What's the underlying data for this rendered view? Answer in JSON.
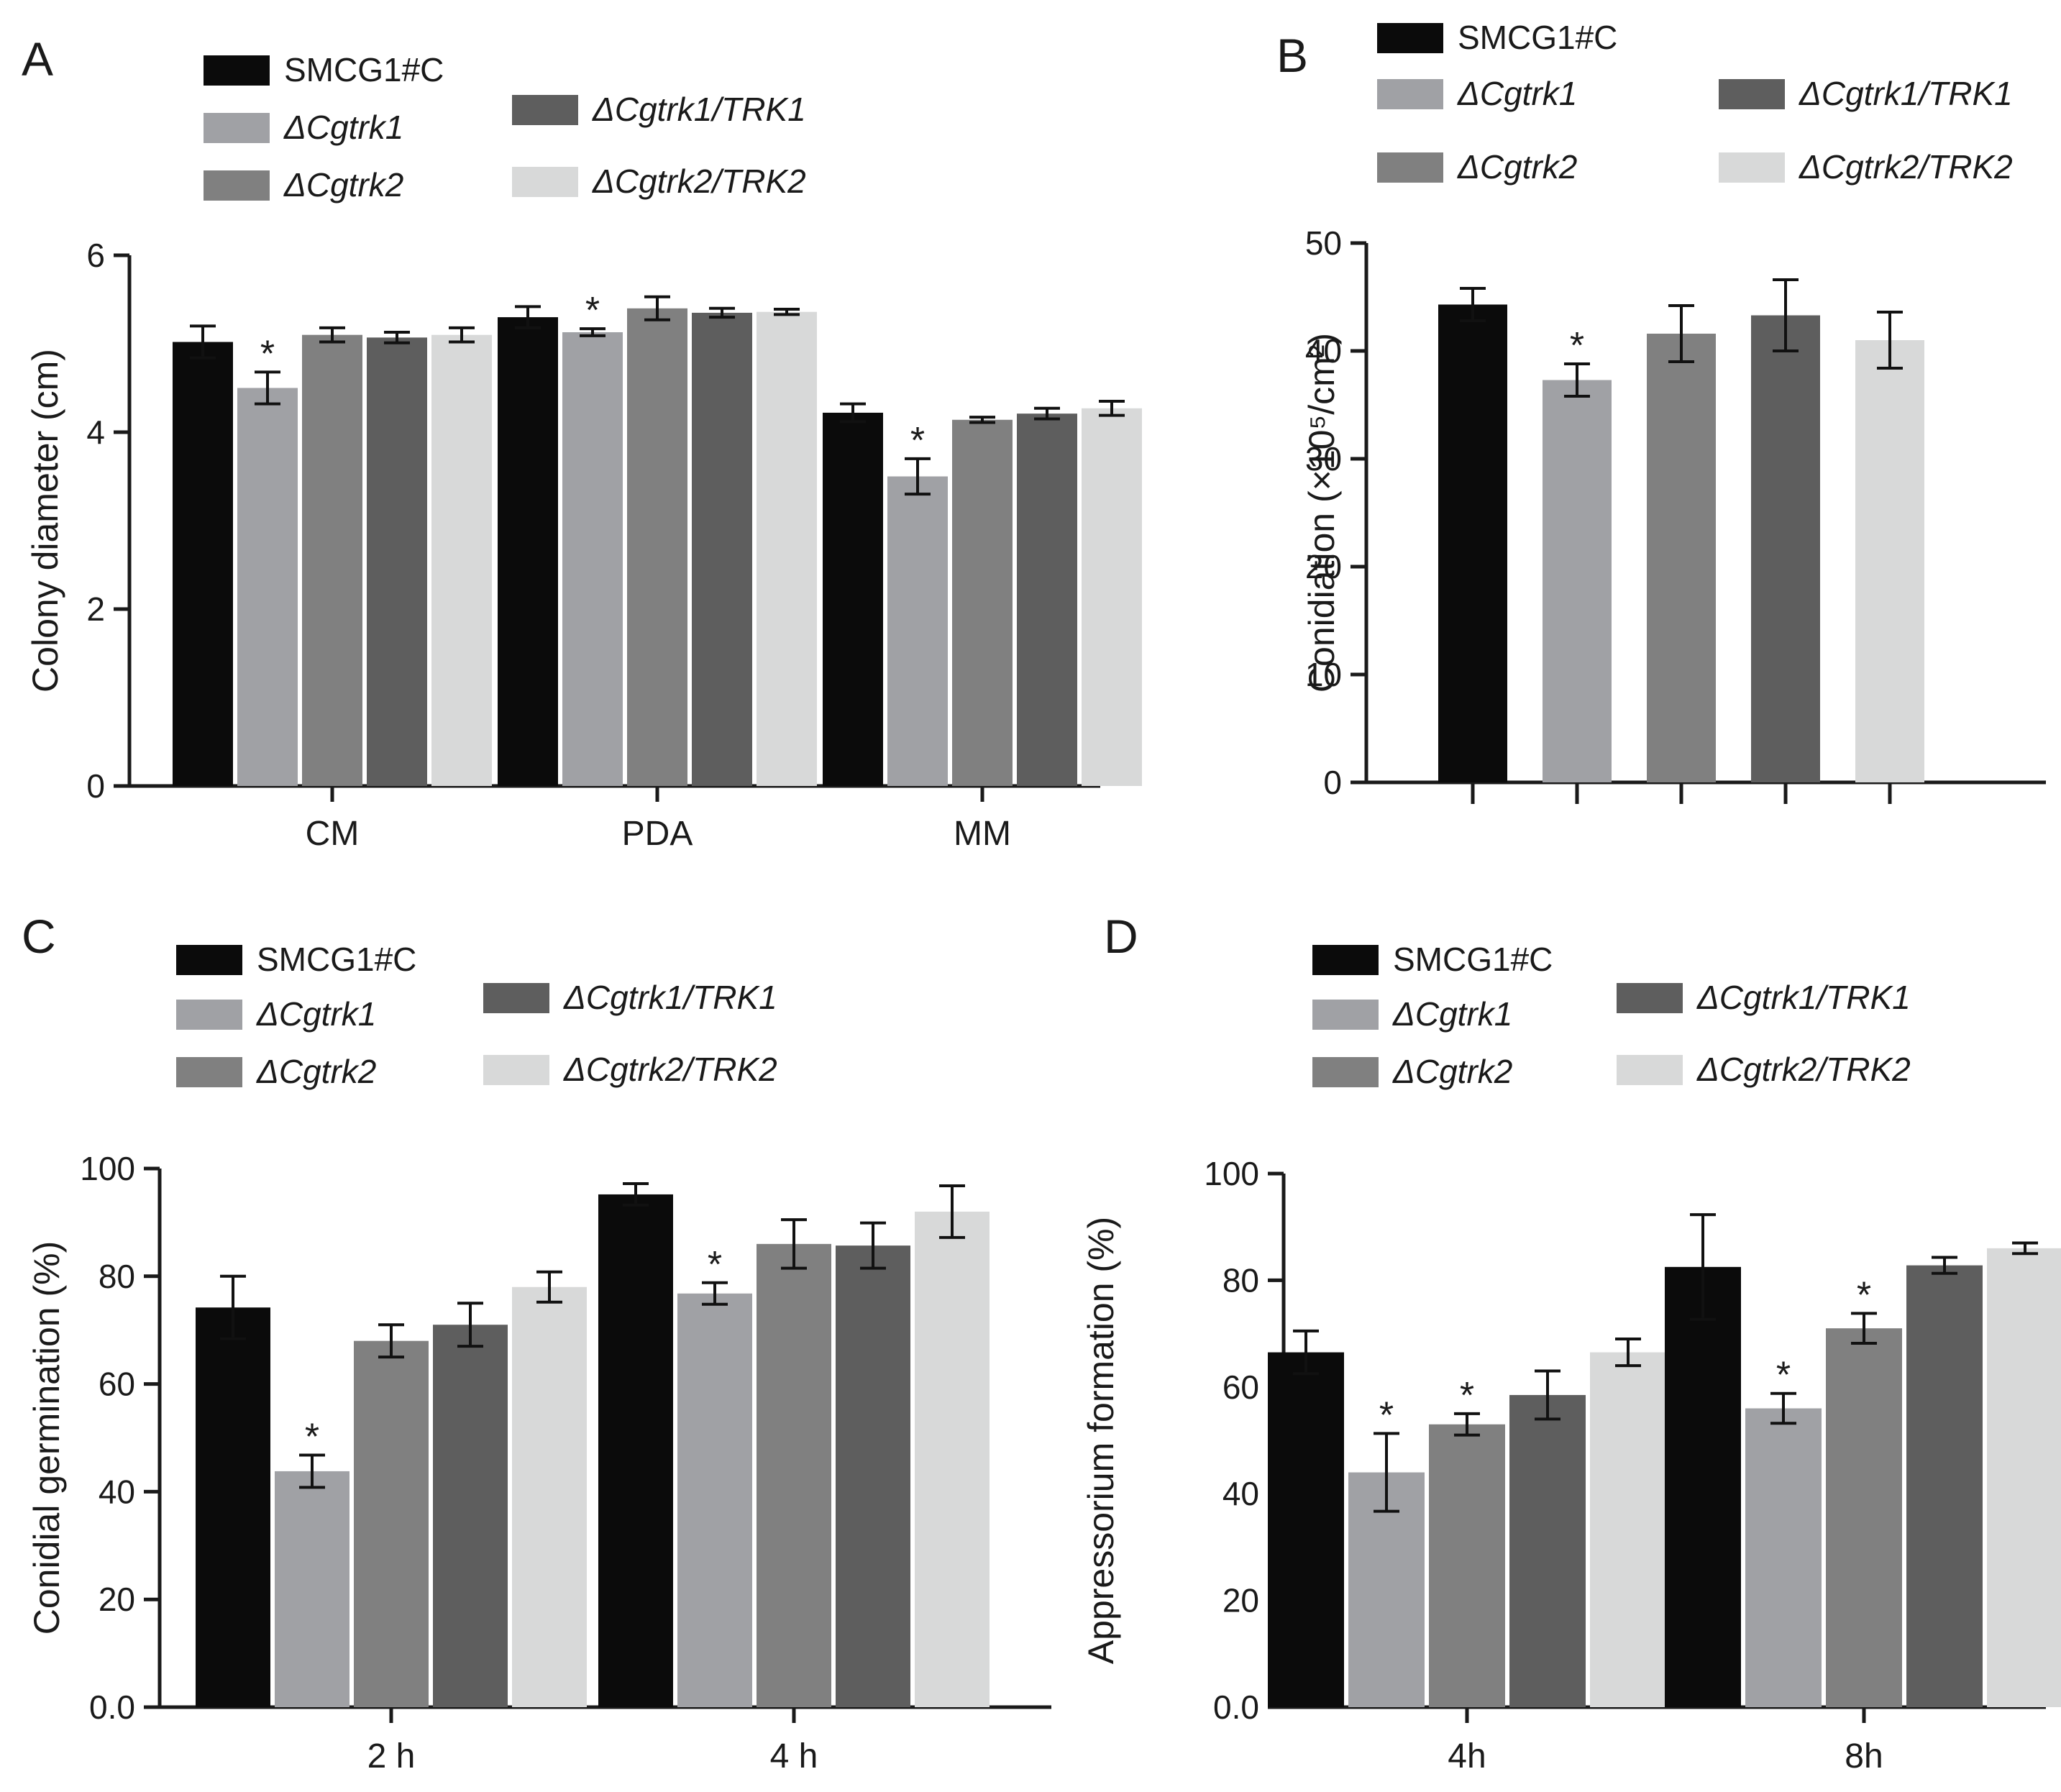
{
  "colors": {
    "SMCG1#C": "#0b0b0b",
    "ΔCgtrk1": "#a0a1a5",
    "ΔCgtrk2": "#808080",
    "ΔCgtrk1/TRK1": "#5e5e5e",
    "ΔCgtrk2/TRK2": "#d8d9d9"
  },
  "chart_data": [
    {
      "type": "bar",
      "panel_label": "A",
      "title": "",
      "xlabel": "",
      "ylabel": "Colony diameter (cm)",
      "ylim": [
        0,
        6
      ],
      "yticks": [
        "0",
        "2",
        "4",
        "6"
      ],
      "categories": [
        "CM",
        "PDA",
        "MM"
      ],
      "legend": [
        "SMCG1#C",
        "ΔCgtrk1",
        "ΔCgtrk1/TRK1",
        "ΔCgtrk2",
        "ΔCgtrk2/TRK2"
      ],
      "series": [
        {
          "name": "SMCG1#C",
          "values": [
            5.02,
            5.3,
            4.22
          ],
          "errors": [
            0.18,
            0.12,
            0.1
          ]
        },
        {
          "name": "ΔCgtrk1",
          "values": [
            4.5,
            5.13,
            3.5
          ],
          "errors": [
            0.18,
            0.04,
            0.2
          ],
          "significant": [
            true,
            true,
            true
          ]
        },
        {
          "name": "ΔCgtrk2",
          "values": [
            5.1,
            5.4,
            4.14
          ],
          "errors": [
            0.08,
            0.13,
            0.03
          ]
        },
        {
          "name": "ΔCgtrk1/TRK1",
          "values": [
            5.07,
            5.35,
            4.21
          ],
          "errors": [
            0.06,
            0.05,
            0.06
          ]
        },
        {
          "name": "ΔCgtrk2/TRK2",
          "values": [
            5.1,
            5.36,
            4.27
          ],
          "errors": [
            0.08,
            0.03,
            0.08
          ]
        }
      ]
    },
    {
      "type": "bar",
      "panel_label": "B",
      "title": "",
      "xlabel": "",
      "ylabel": "Conidiation (×10⁵/cm²)",
      "ylim": [
        0,
        50
      ],
      "yticks": [
        "0",
        "10",
        "20",
        "30",
        "40",
        "50"
      ],
      "categories": [
        "SMCG1#C",
        "ΔCgtrk1",
        "ΔCgtrk2",
        "ΔCgtrk1/TRK1",
        "ΔCgtrk2/TRK2"
      ],
      "values": [
        44.3,
        37.3,
        41.6,
        43.3,
        41.0
      ],
      "errors": [
        1.5,
        1.5,
        2.6,
        3.3,
        2.6
      ],
      "significant": [
        false,
        true,
        false,
        false,
        false
      ],
      "legend": [
        "SMCG1#C",
        "ΔCgtrk1",
        "ΔCgtrk1/TRK1",
        "ΔCgtrk2",
        "ΔCgtrk2/TRK2"
      ]
    },
    {
      "type": "bar",
      "panel_label": "C",
      "title": "",
      "xlabel": "",
      "ylabel": "Conidial germination (%)",
      "ylim": [
        0,
        100
      ],
      "yticks": [
        "0.0",
        "20",
        "40",
        "60",
        "80",
        "100"
      ],
      "categories": [
        "2 h",
        "4 h"
      ],
      "legend": [
        "SMCG1#C",
        "ΔCgtrk1",
        "ΔCgtrk1/TRK1",
        "ΔCgtrk2",
        "ΔCgtrk2/TRK2"
      ],
      "series": [
        {
          "name": "SMCG1#C",
          "values": [
            74.2,
            95.2
          ],
          "errors": [
            5.8,
            2.0
          ]
        },
        {
          "name": "ΔCgtrk1",
          "values": [
            43.8,
            76.8
          ],
          "errors": [
            3.0,
            2.0
          ],
          "significant": [
            true,
            true
          ]
        },
        {
          "name": "ΔCgtrk2",
          "values": [
            68.0,
            86.0
          ],
          "errors": [
            3.0,
            4.5
          ]
        },
        {
          "name": "ΔCgtrk1/TRK1",
          "values": [
            71.0,
            85.7
          ],
          "errors": [
            4.0,
            4.2
          ]
        },
        {
          "name": "ΔCgtrk2/TRK2",
          "values": [
            78.0,
            92.0
          ],
          "errors": [
            2.8,
            4.8
          ]
        }
      ]
    },
    {
      "type": "bar",
      "panel_label": "D",
      "title": "",
      "xlabel": "",
      "ylabel": "Appressorium formation (%)",
      "ylim": [
        0,
        100
      ],
      "yticks": [
        "0.0",
        "20",
        "40",
        "60",
        "80",
        "100"
      ],
      "categories": [
        "4h",
        "8h"
      ],
      "legend": [
        "SMCG1#C",
        "ΔCgtrk1",
        "ΔCgtrk1/TRK1",
        "ΔCgtrk2",
        "ΔCgtrk2/TRK2"
      ],
      "series": [
        {
          "name": "SMCG1#C",
          "values": [
            66.5,
            82.5
          ],
          "errors": [
            4.0,
            9.8
          ]
        },
        {
          "name": "ΔCgtrk1",
          "values": [
            44.0,
            56.0
          ],
          "errors": [
            7.3,
            2.8
          ],
          "significant": [
            true,
            true
          ]
        },
        {
          "name": "ΔCgtrk2",
          "values": [
            53.0,
            71.0
          ],
          "errors": [
            2.0,
            2.8
          ],
          "significant": [
            true,
            true
          ]
        },
        {
          "name": "ΔCgtrk1/TRK1",
          "values": [
            58.5,
            82.8
          ],
          "errors": [
            4.5,
            1.5
          ]
        },
        {
          "name": "ΔCgtrk2/TRK2",
          "values": [
            66.5,
            86.0
          ],
          "errors": [
            2.5,
            1.0
          ]
        }
      ]
    }
  ]
}
